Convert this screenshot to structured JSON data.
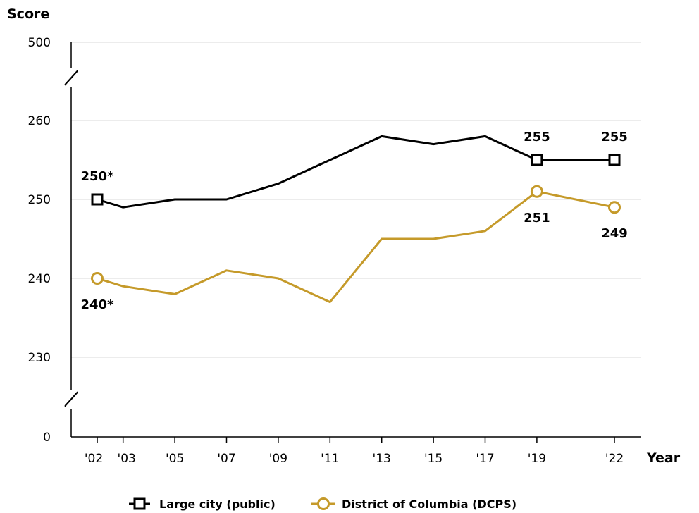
{
  "chart_data": {
    "type": "line",
    "ylabel": "Score",
    "xlabel": "Year",
    "x": [
      "'02",
      "'03",
      "'05",
      "'07",
      "'09",
      "'11",
      "'13",
      "'15",
      "'17",
      "'19",
      "'22"
    ],
    "x_years": [
      2002,
      2003,
      2005,
      2007,
      2009,
      2011,
      2013,
      2015,
      2017,
      2019,
      2022
    ],
    "y_ticks": [
      "0",
      "230",
      "240",
      "250",
      "260",
      "500"
    ],
    "y_break_range": [
      225,
      265
    ],
    "y_axis_breaks": true,
    "grid": true,
    "legend_position": "bottom",
    "series": [
      {
        "name": "Large city (public)",
        "color": "#000000",
        "marker": "square",
        "values": [
          250,
          249,
          250,
          250,
          252,
          255,
          258,
          257,
          258,
          255,
          255
        ],
        "labeled_points": [
          {
            "index": 0,
            "text": "250*",
            "pos": "above"
          },
          {
            "index": 9,
            "text": "255",
            "pos": "above"
          },
          {
            "index": 10,
            "text": "255",
            "pos": "above"
          }
        ]
      },
      {
        "name": "District of Columbia (DCPS)",
        "color": "#c59a2a",
        "marker": "circle",
        "values": [
          240,
          239,
          238,
          241,
          240,
          237,
          245,
          245,
          246,
          251,
          249
        ],
        "labeled_points": [
          {
            "index": 0,
            "text": "240*",
            "pos": "below"
          },
          {
            "index": 9,
            "text": "251",
            "pos": "below"
          },
          {
            "index": 10,
            "text": "249",
            "pos": "below"
          }
        ]
      }
    ]
  }
}
